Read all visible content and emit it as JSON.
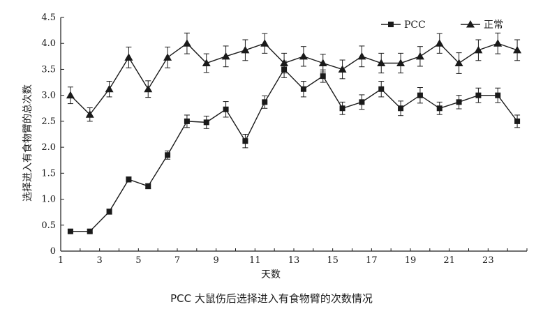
{
  "caption": "PCC 大鼠伤后选择进入有食物臂的次数情况",
  "chart_data": {
    "type": "line",
    "title": "",
    "xlabel": "天数",
    "ylabel": "选择进入有食物臂的总次数",
    "xlim": [
      1,
      25
    ],
    "ylim": [
      0,
      4.5
    ],
    "xticks": [
      1,
      3,
      5,
      7,
      9,
      11,
      13,
      15,
      17,
      19,
      21,
      23
    ],
    "yticks": [
      0,
      0.5,
      1.0,
      1.5,
      2.0,
      2.5,
      3.0,
      3.5,
      4.0,
      4.5
    ],
    "ytick_labels": [
      "0",
      "0.5",
      "1.0",
      "1.5",
      "2.0",
      "2.5",
      "3.0",
      "3.5",
      "4.0",
      "4.5"
    ],
    "legend_position": "top-right",
    "grid": false,
    "x": [
      1.5,
      2.5,
      3.5,
      4.5,
      5.5,
      6.5,
      7.5,
      8.5,
      9.5,
      10.5,
      11.5,
      12.5,
      13.5,
      14.5,
      15.5,
      16.5,
      17.5,
      18.5,
      19.5,
      20.5,
      21.5,
      22.5,
      23.5,
      24.5
    ],
    "series": [
      {
        "name": "PCC",
        "marker": "square",
        "values": [
          0.38,
          0.38,
          0.76,
          1.38,
          1.25,
          1.85,
          2.5,
          2.48,
          2.73,
          2.12,
          2.87,
          3.5,
          3.12,
          3.37,
          2.75,
          2.87,
          3.12,
          2.75,
          3.0,
          2.75,
          2.87,
          3.0,
          3.0,
          2.5
        ],
        "errors": [
          0.03,
          0.03,
          0.05,
          0.05,
          0.05,
          0.08,
          0.12,
          0.12,
          0.15,
          0.13,
          0.12,
          0.16,
          0.15,
          0.12,
          0.12,
          0.14,
          0.15,
          0.14,
          0.15,
          0.12,
          0.13,
          0.14,
          0.14,
          0.12
        ]
      },
      {
        "name": "正常",
        "marker": "triangle",
        "values": [
          3.0,
          2.63,
          3.12,
          3.73,
          3.12,
          3.73,
          4.0,
          3.62,
          3.75,
          3.87,
          4.0,
          3.62,
          3.75,
          3.62,
          3.5,
          3.75,
          3.62,
          3.62,
          3.75,
          4.0,
          3.62,
          3.87,
          4.0,
          3.87
        ],
        "errors": [
          0.16,
          0.13,
          0.15,
          0.2,
          0.16,
          0.2,
          0.2,
          0.18,
          0.2,
          0.2,
          0.19,
          0.19,
          0.19,
          0.17,
          0.18,
          0.2,
          0.19,
          0.19,
          0.19,
          0.19,
          0.2,
          0.2,
          0.2,
          0.2
        ]
      }
    ]
  },
  "colors": {
    "ink": "#1a1a1a",
    "background": "#ffffff"
  }
}
